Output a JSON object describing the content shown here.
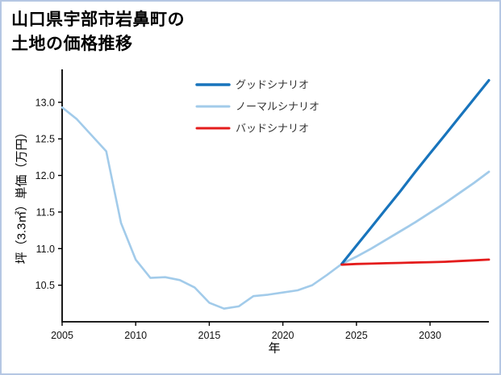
{
  "title": {
    "line1": "山口県宇部市岩鼻町の",
    "line2": "土地の価格推移"
  },
  "chart_data": {
    "type": "line",
    "title": "山口県宇部市岩鼻町の土地の価格推移",
    "xlabel": "年",
    "ylabel": "坪（3.3㎡）単価（万円）",
    "xlim": [
      2005,
      2034
    ],
    "ylim": [
      10.0,
      13.45
    ],
    "x_ticks": [
      2005,
      2010,
      2015,
      2020,
      2025,
      2030
    ],
    "y_ticks": [
      10.5,
      11.0,
      11.5,
      12.0,
      12.5,
      13.0
    ],
    "grid": false,
    "legend_position": "upper-center-inside",
    "axis_color": "#000000",
    "tick_label_color": "#111111",
    "legend_text_color": "#333333",
    "series": [
      {
        "id": "historical",
        "name": "historical",
        "show_in_legend": false,
        "color": "#a2cbea",
        "width": 2.6,
        "x": [
          2005,
          2006,
          2007,
          2008,
          2009,
          2010,
          2011,
          2012,
          2013,
          2014,
          2015,
          2016,
          2017,
          2018,
          2019,
          2020,
          2021,
          2022,
          2023,
          2024
        ],
        "values": [
          12.93,
          12.77,
          12.55,
          12.33,
          11.35,
          10.85,
          10.6,
          10.61,
          10.57,
          10.47,
          10.26,
          10.18,
          10.21,
          10.35,
          10.37,
          10.4,
          10.43,
          10.5,
          10.64,
          10.79
        ]
      },
      {
        "id": "normal",
        "name": "ノーマルシナリオ",
        "show_in_legend": true,
        "legend_order": 1,
        "color": "#a2cbea",
        "width": 2.8,
        "x": [
          2024,
          2025,
          2026,
          2027,
          2028,
          2029,
          2030,
          2031,
          2032,
          2033,
          2034
        ],
        "values": [
          10.79,
          10.89,
          11.0,
          11.12,
          11.24,
          11.36,
          11.49,
          11.62,
          11.76,
          11.9,
          12.05
        ]
      },
      {
        "id": "good",
        "name": "グッドシナリオ",
        "show_in_legend": true,
        "legend_order": 0,
        "color": "#1874bc",
        "width": 3.2,
        "x": [
          2024,
          2025,
          2026,
          2027,
          2028,
          2029,
          2030,
          2031,
          2032,
          2033,
          2034
        ],
        "values": [
          10.79,
          11.04,
          11.29,
          11.54,
          11.79,
          12.05,
          12.3,
          12.55,
          12.8,
          13.05,
          13.3
        ]
      },
      {
        "id": "bad",
        "name": "バッドシナリオ",
        "show_in_legend": true,
        "legend_order": 2,
        "color": "#e41c1c",
        "width": 2.8,
        "x": [
          2024,
          2025,
          2026,
          2027,
          2028,
          2029,
          2030,
          2031,
          2032,
          2033,
          2034
        ],
        "values": [
          10.78,
          10.79,
          10.795,
          10.8,
          10.805,
          10.81,
          10.815,
          10.82,
          10.83,
          10.84,
          10.85
        ]
      }
    ]
  }
}
